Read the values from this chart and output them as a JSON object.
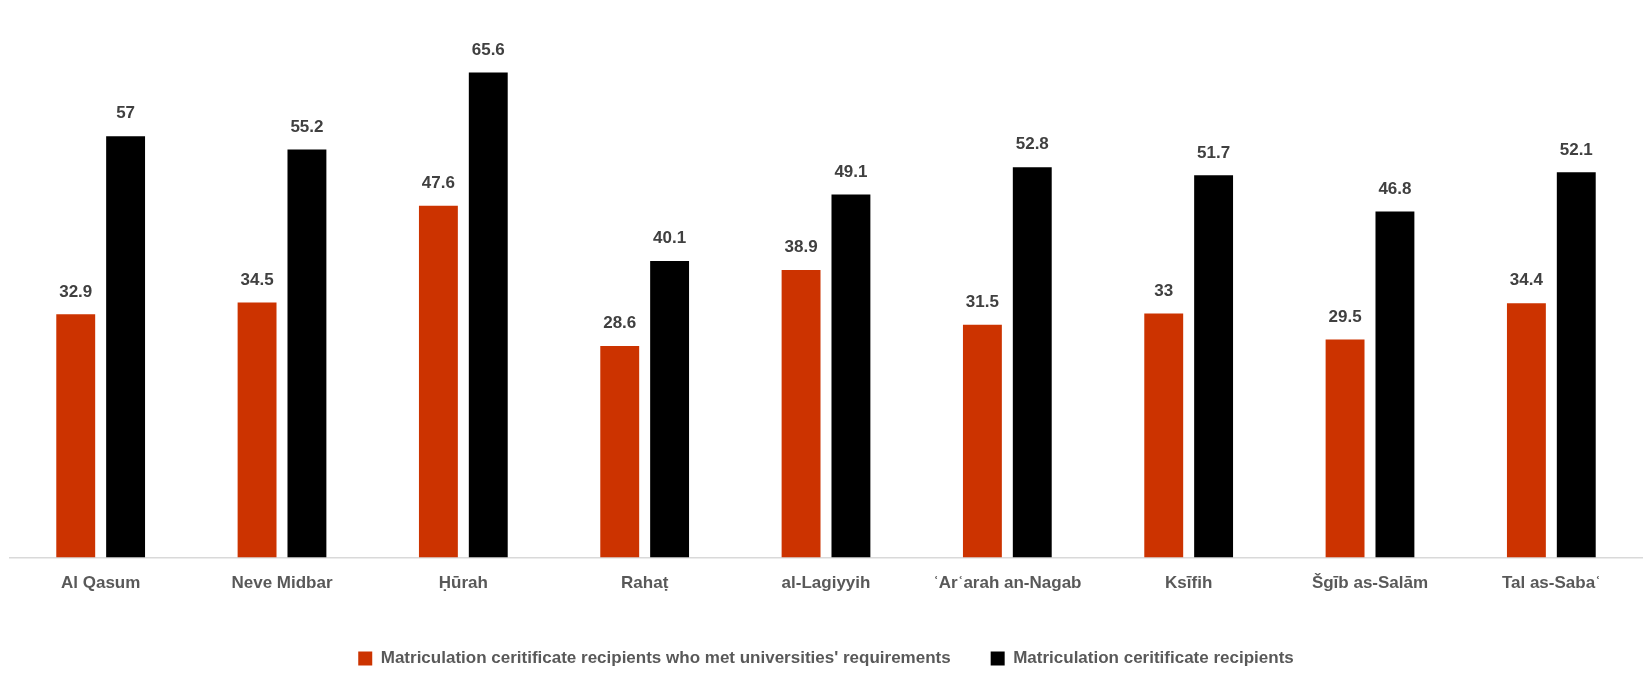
{
  "chart_data": {
    "type": "bar",
    "categories": [
      "Al Qasum",
      "Neve Midbar",
      "Ḥūrah",
      "Rahaṭ",
      "al-Lagiyyih",
      "ʿArʿarah an-Nagab",
      "Ksīfih",
      "Šgīb as-Salām",
      "Tal as-Sabaʿ"
    ],
    "series": [
      {
        "name": "Matriculation ceritificate recipients who met universities' requirements",
        "color": "#cc3300",
        "values": [
          32.9,
          34.5,
          47.6,
          28.6,
          38.9,
          31.5,
          33,
          29.5,
          34.4
        ]
      },
      {
        "name": "Matriculation ceritificate recipients",
        "color": "#000000",
        "values": [
          57,
          55.2,
          65.6,
          40.1,
          49.1,
          52.8,
          51.7,
          46.8,
          52.1
        ]
      }
    ],
    "data_labels": true,
    "legend": "bottom",
    "grid": false
  }
}
